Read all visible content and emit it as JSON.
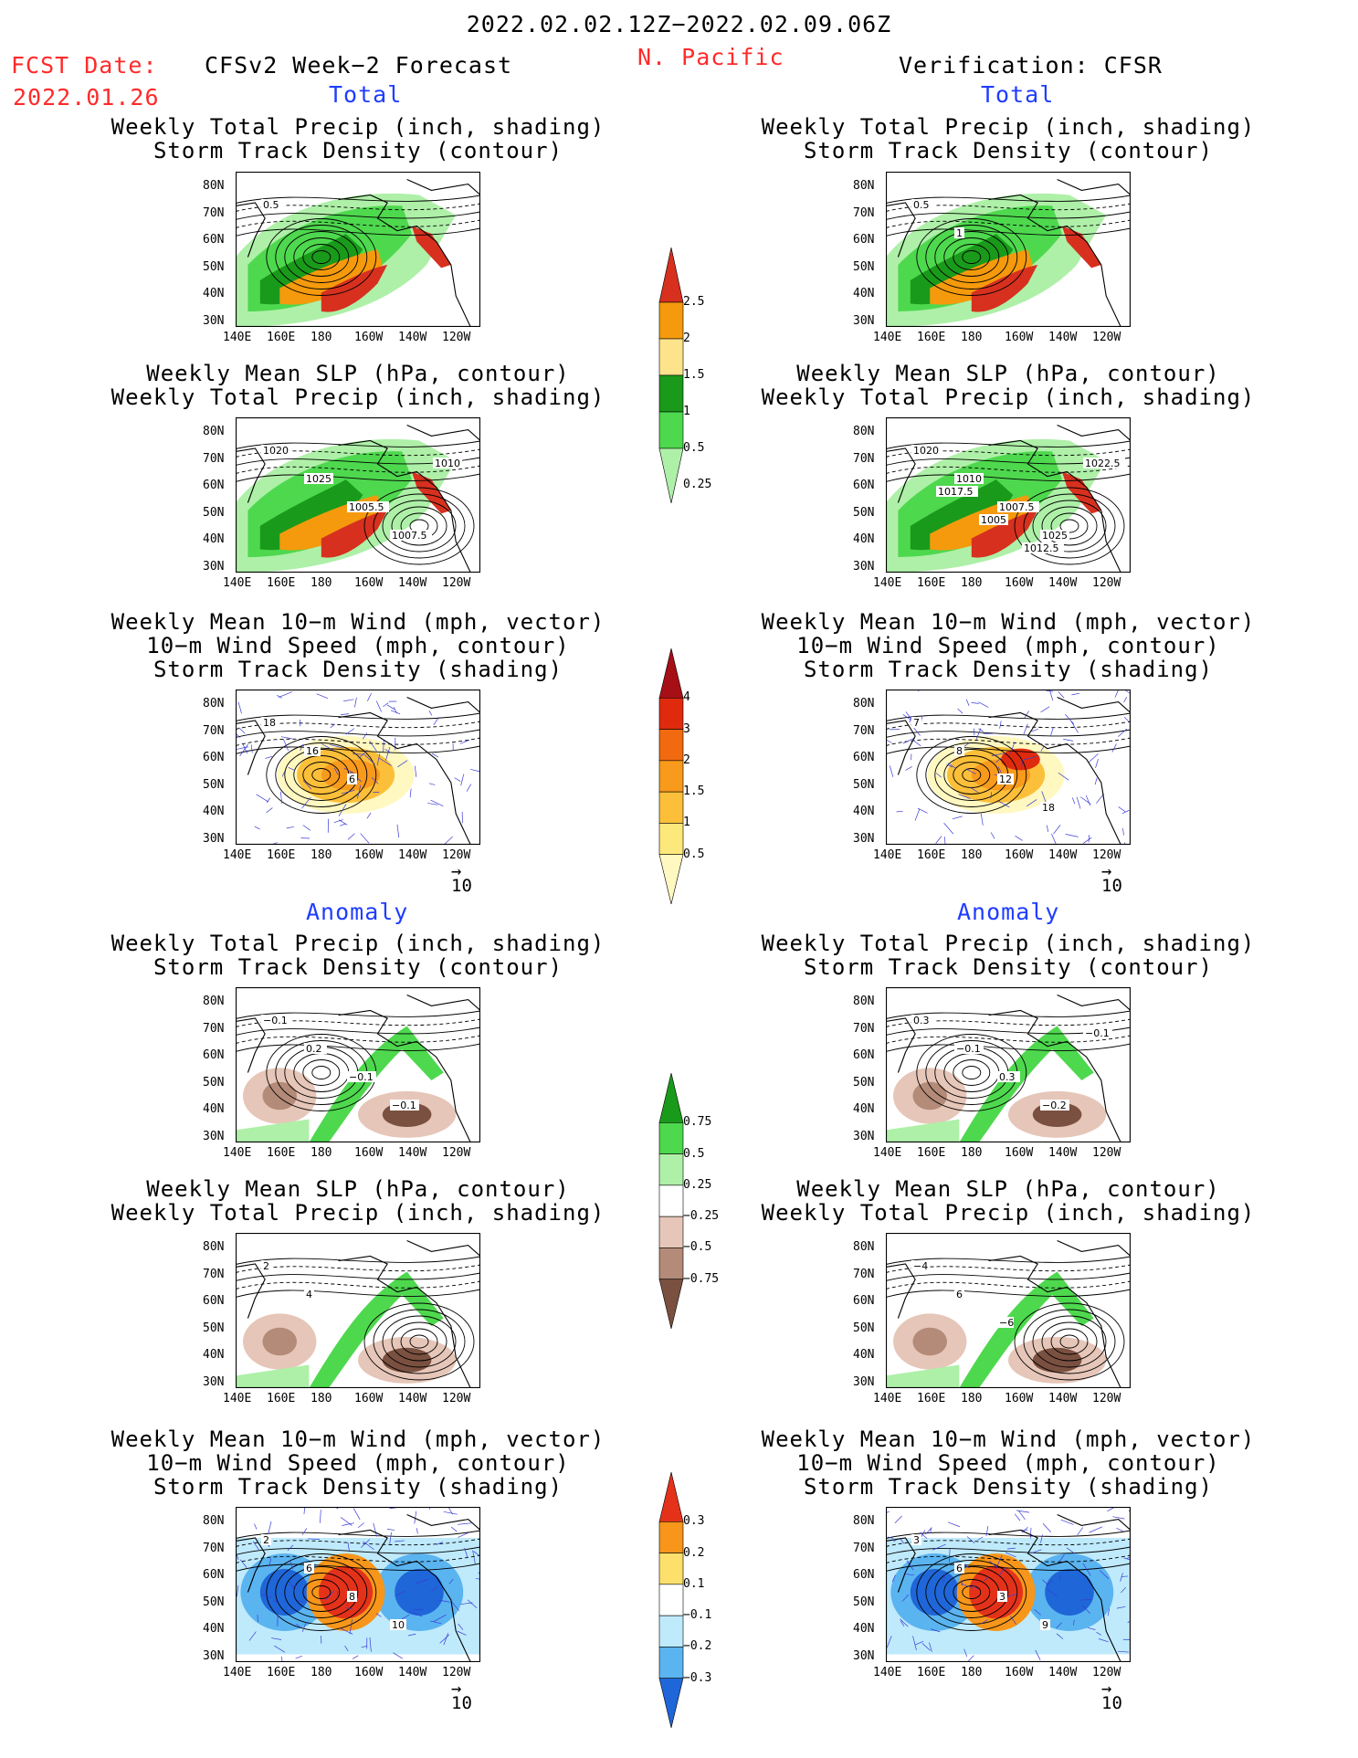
{
  "header": {
    "date_range": "2022.02.02.12Z−2022.02.09.06Z",
    "fcst_label": "FCST Date:",
    "fcst_date": "2022.01.26",
    "left_title": "CFSv2 Week−2 Forecast",
    "region": "N. Pacific",
    "right_title": "Verification: CFSR"
  },
  "sections": {
    "total": "Total",
    "anomaly": "Anomaly"
  },
  "panel_titles": {
    "precip_storm": [
      "Weekly Total Precip (inch, shading)",
      "Storm Track Density (contour)"
    ],
    "slp_precip": [
      "Weekly Mean SLP (hPa, contour)",
      "Weekly Total Precip (inch, shading)"
    ],
    "wind_storm": [
      "Weekly Mean 10−m Wind (mph, vector)",
      "10−m Wind Speed (mph, contour)",
      "Storm Track Density (shading)"
    ]
  },
  "axes": {
    "lat_ticks": [
      "80N",
      "70N",
      "60N",
      "50N",
      "40N",
      "30N"
    ],
    "lon_ticks": [
      "140E",
      "160E",
      "180",
      "160W",
      "140W",
      "120W"
    ]
  },
  "vector_reference": "10",
  "colorbars": {
    "precip_total": {
      "labels": [
        "2.5",
        "2",
        "1.5",
        "1",
        "0.5",
        "0.25"
      ],
      "colors": [
        "#d7301f",
        "#f59a0c",
        "#fde38c",
        "#1a9a1a",
        "#4ed84e",
        "#aef0a8"
      ]
    },
    "storm_total": {
      "labels": [
        "4",
        "3",
        "2",
        "1.5",
        "1",
        "0.5"
      ],
      "colors": [
        "#a50f15",
        "#e02a0e",
        "#f26a0f",
        "#f89a1c",
        "#fcbf3a",
        "#fde87c",
        "#fff8c0"
      ]
    },
    "precip_anom": {
      "labels": [
        "0.75",
        "0.5",
        "0.25",
        "−0.25",
        "−0.5",
        "−0.75"
      ],
      "colors": [
        "#1a9a1a",
        "#4ed84e",
        "#aef0a8",
        "#ffffff",
        "#e6c6b8",
        "#b48a78",
        "#7a5040"
      ]
    },
    "storm_anom": {
      "labels": [
        "0.3",
        "0.2",
        "0.1",
        "−0.1",
        "−0.2",
        "−0.3"
      ],
      "colors": [
        "#e4321a",
        "#f7961a",
        "#fde06c",
        "#ffffff",
        "#bfeafc",
        "#5ab4f0",
        "#1f66d8"
      ]
    }
  },
  "contour_labels": {
    "fc_precip_total": [
      "0.5"
    ],
    "vf_precip_total": [
      "0.5",
      "1"
    ],
    "fc_slp_total": [
      "1020",
      "1025",
      "1005.5",
      "1007.5",
      "1010"
    ],
    "vf_slp_total": [
      "1020",
      "1010",
      "1007.5",
      "1025",
      "1022.5",
      "1017.5",
      "1005",
      "1012.5"
    ],
    "fc_wind_total": [
      "18",
      "16",
      "6"
    ],
    "vf_wind_total": [
      "7",
      "8",
      "12",
      "18"
    ],
    "fc_precip_anom": [
      "−0.1",
      "0.2",
      "−0.1",
      "−0.1"
    ],
    "vf_precip_anom": [
      "0.3",
      "−0.1",
      "0.3",
      "−0.2",
      "−0.1"
    ],
    "fc_slp_anom": [
      "2",
      "4"
    ],
    "vf_slp_anom": [
      "−4",
      "6",
      "−6"
    ],
    "fc_wind_anom": [
      "2",
      "6",
      "8",
      "10"
    ],
    "vf_wind_anom": [
      "3",
      "6",
      "3",
      "9"
    ]
  }
}
